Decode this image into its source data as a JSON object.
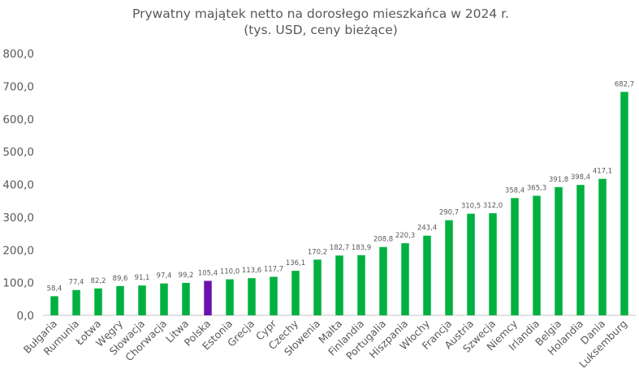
{
  "chart_data": {
    "type": "bar",
    "title": "Prywatny majątek netto na dorosłego mieszkańca w 2024 r.",
    "subtitle": "(tys. USD, ceny bieżące)",
    "xlabel": "",
    "ylabel": "",
    "ylim": [
      0,
      800
    ],
    "yticks": [
      "0,0",
      "100,0",
      "200,0",
      "300,0",
      "400,0",
      "500,0",
      "600,0",
      "700,0",
      "800,0"
    ],
    "grid": false,
    "legend": "none",
    "colors": {
      "default": "#00b140",
      "highlight": "#6a12b0",
      "text": "#595959",
      "axis": "#d9d9d9"
    },
    "highlight_category": "Polska",
    "categories": [
      "Bułgaria",
      "Rumunia",
      "Łotwa",
      "Węgry",
      "Słowacja",
      "Chorwacja",
      "Litwa",
      "Polska",
      "Estonia",
      "Grecja",
      "Cypr",
      "Czechy",
      "Słowenia",
      "Malta",
      "Finlandia",
      "Portugalia",
      "Hiszpania",
      "Włochy",
      "Francja",
      "Austria",
      "Szwecja",
      "Niemcy",
      "Irlandia",
      "Belgia",
      "Holandia",
      "Dania",
      "Luksemburg"
    ],
    "values": [
      58.4,
      77.4,
      82.2,
      89.6,
      91.1,
      97.4,
      99.2,
      105.4,
      110.0,
      113.6,
      117.7,
      136.1,
      170.2,
      182.7,
      183.9,
      208.8,
      220.3,
      243.4,
      290.7,
      310.5,
      312.0,
      358.4,
      365.3,
      391.8,
      398.4,
      417.1,
      682.7
    ],
    "data_labels": [
      "58,4",
      "77,4",
      "82,2",
      "89,6",
      "91,1",
      "97,4",
      "99,2",
      "105,4",
      "110,0",
      "113,6",
      "117,7",
      "136,1",
      "170,2",
      "182,7",
      "183,9",
      "208,8",
      "220,3",
      "243,4",
      "290,7",
      "310,5",
      "312,0",
      "358,4",
      "365,3",
      "391,8",
      "398,4",
      "417,1",
      "682,7"
    ]
  }
}
